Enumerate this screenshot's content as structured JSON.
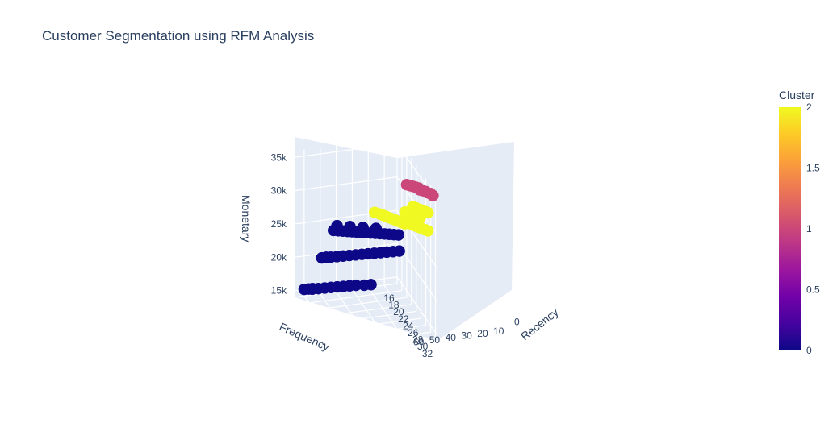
{
  "chart_data": {
    "type": "scatter3d",
    "title": "Customer Segmentation using RFM Analysis",
    "axes": {
      "x": {
        "label": "Frequency",
        "ticks": [
          "16",
          "18",
          "20",
          "22",
          "24",
          "26",
          "28",
          "30",
          "32"
        ]
      },
      "y": {
        "label": "Recency",
        "ticks": [
          "10",
          "20",
          "30",
          "40",
          "50",
          "60"
        ]
      },
      "z": {
        "label": "Monetary",
        "ticks": [
          "15k",
          "20k",
          "25k",
          "30k",
          "35k"
        ]
      },
      "ranges": {
        "frequency": [
          16,
          32.5
        ],
        "recency": [
          2,
          66
        ],
        "monetary": [
          14000,
          36000
        ]
      },
      "extra_recency_tick": "0"
    },
    "colorbar": {
      "title": "Cluster",
      "ticks": [
        "0",
        "0.5",
        "1",
        "1.5",
        "2"
      ],
      "range": [
        0,
        2
      ],
      "colorscale": [
        "#0d0887",
        "#46039f",
        "#7201a8",
        "#9c179e",
        "#bd3786",
        "#d8576b",
        "#ed7953",
        "#fb9f3a",
        "#fdca26",
        "#f0f921"
      ]
    },
    "series": [
      {
        "cluster": 0,
        "points": [
          [
            16.0,
            60,
            15000
          ],
          [
            16.4,
            58,
            15200
          ],
          [
            16.8,
            56,
            15400
          ],
          [
            18.0,
            58,
            16000
          ],
          [
            18.6,
            55,
            16300
          ],
          [
            19.2,
            52,
            16600
          ],
          [
            19.8,
            49,
            16900
          ],
          [
            20.4,
            46,
            17200
          ],
          [
            21.0,
            43,
            17500
          ],
          [
            21.6,
            40,
            17800
          ],
          [
            22.2,
            37,
            18100
          ],
          [
            23.0,
            33,
            18400
          ],
          [
            23.8,
            30,
            18800
          ],
          [
            18.0,
            52,
            20500
          ],
          [
            18.5,
            50,
            20800
          ],
          [
            19.0,
            48,
            21000
          ],
          [
            19.6,
            45,
            21300
          ],
          [
            20.2,
            42,
            21600
          ],
          [
            20.8,
            39,
            21900
          ],
          [
            21.4,
            36,
            22200
          ],
          [
            22.0,
            33,
            22500
          ],
          [
            22.6,
            30,
            22800
          ],
          [
            23.2,
            27,
            23100
          ],
          [
            23.8,
            24,
            23400
          ],
          [
            24.4,
            21,
            23700
          ],
          [
            25.0,
            18,
            24000
          ],
          [
            25.6,
            15,
            24300
          ],
          [
            18.2,
            45,
            24500
          ],
          [
            18.8,
            43,
            24700
          ],
          [
            19.4,
            41,
            24900
          ],
          [
            20.0,
            39,
            25100
          ],
          [
            20.6,
            37,
            25300
          ],
          [
            21.2,
            35,
            25500
          ],
          [
            21.8,
            33,
            25700
          ],
          [
            22.4,
            31,
            25900
          ],
          [
            23.0,
            29,
            26100
          ],
          [
            23.6,
            27,
            26300
          ],
          [
            24.2,
            25,
            26500
          ],
          [
            24.8,
            23,
            26700
          ],
          [
            25.4,
            21,
            26900
          ],
          [
            26.0,
            19,
            27100
          ],
          [
            26.6,
            17,
            27300
          ],
          [
            19.0,
            44,
            25600
          ],
          [
            20.4,
            38,
            26000
          ],
          [
            21.8,
            32,
            26400
          ],
          [
            23.2,
            26,
            26800
          ]
        ]
      },
      {
        "cluster": 1,
        "points": [
          [
            24.0,
            8,
            33200
          ],
          [
            24.6,
            7,
            33350
          ],
          [
            25.2,
            6,
            33500
          ],
          [
            25.8,
            5,
            33650
          ],
          [
            26.4,
            4,
            33800
          ],
          [
            27.4,
            5,
            34100
          ],
          [
            28.0,
            4,
            34250
          ],
          [
            28.6,
            3,
            34400
          ],
          [
            29.2,
            3,
            34550
          ],
          [
            29.8,
            2,
            34700
          ],
          [
            30.4,
            2,
            34850
          ],
          [
            31.0,
            2,
            35000
          ]
        ]
      },
      {
        "cluster": 2,
        "points": [
          [
            20.0,
            22,
            27400
          ],
          [
            21.0,
            20,
            27600
          ],
          [
            21.6,
            19,
            27700
          ],
          [
            22.2,
            18,
            27800
          ],
          [
            22.8,
            17,
            27900
          ],
          [
            23.4,
            16,
            28000
          ],
          [
            24.0,
            15,
            28100
          ],
          [
            24.6,
            14,
            28200
          ],
          [
            25.2,
            13,
            28300
          ],
          [
            25.8,
            12,
            28400
          ],
          [
            26.6,
            13,
            30600
          ],
          [
            27.2,
            12,
            30700
          ],
          [
            27.8,
            11,
            30800
          ],
          [
            28.4,
            10,
            30900
          ],
          [
            29.0,
            9,
            31000
          ],
          [
            29.6,
            8,
            31100
          ],
          [
            27.2,
            9,
            31600
          ],
          [
            27.8,
            8,
            31700
          ],
          [
            28.4,
            7,
            31800
          ],
          [
            29.0,
            6,
            31900
          ],
          [
            29.6,
            5,
            32000
          ],
          [
            30.2,
            4,
            32100
          ],
          [
            28.0,
            14,
            29800
          ],
          [
            28.6,
            13,
            29900
          ],
          [
            29.2,
            12,
            30000
          ],
          [
            29.8,
            11,
            30100
          ],
          [
            30.4,
            10,
            30200
          ],
          [
            31.0,
            9,
            30300
          ],
          [
            31.6,
            8,
            30400
          ],
          [
            32.2,
            7,
            30500
          ]
        ]
      }
    ]
  }
}
